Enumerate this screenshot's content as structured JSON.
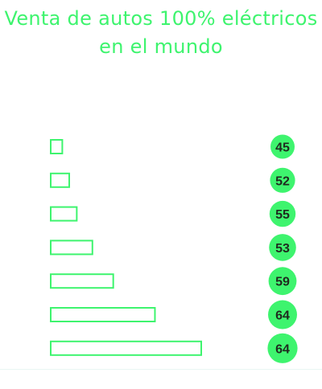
{
  "title": "Venta de autos 100% eléctricos en el mundo",
  "colors": {
    "accent": "#3ef46e",
    "badge_text": "#1f2a1f"
  },
  "chart_data": {
    "type": "bar",
    "orientation": "horizontal",
    "title": "Venta de autos 100% eléctricos en el mundo",
    "xlabel": "",
    "ylabel": "",
    "series": [
      {
        "values": [
          0.2,
          0.32,
          0.45,
          0.72,
          1.08,
          1.8,
          2.6
        ]
      }
    ],
    "labels": [
      "45",
      "52",
      "55",
      "53",
      "59",
      "64",
      "64"
    ],
    "xlim": [
      0,
      2.6
    ],
    "grid": false,
    "legend": "none"
  }
}
